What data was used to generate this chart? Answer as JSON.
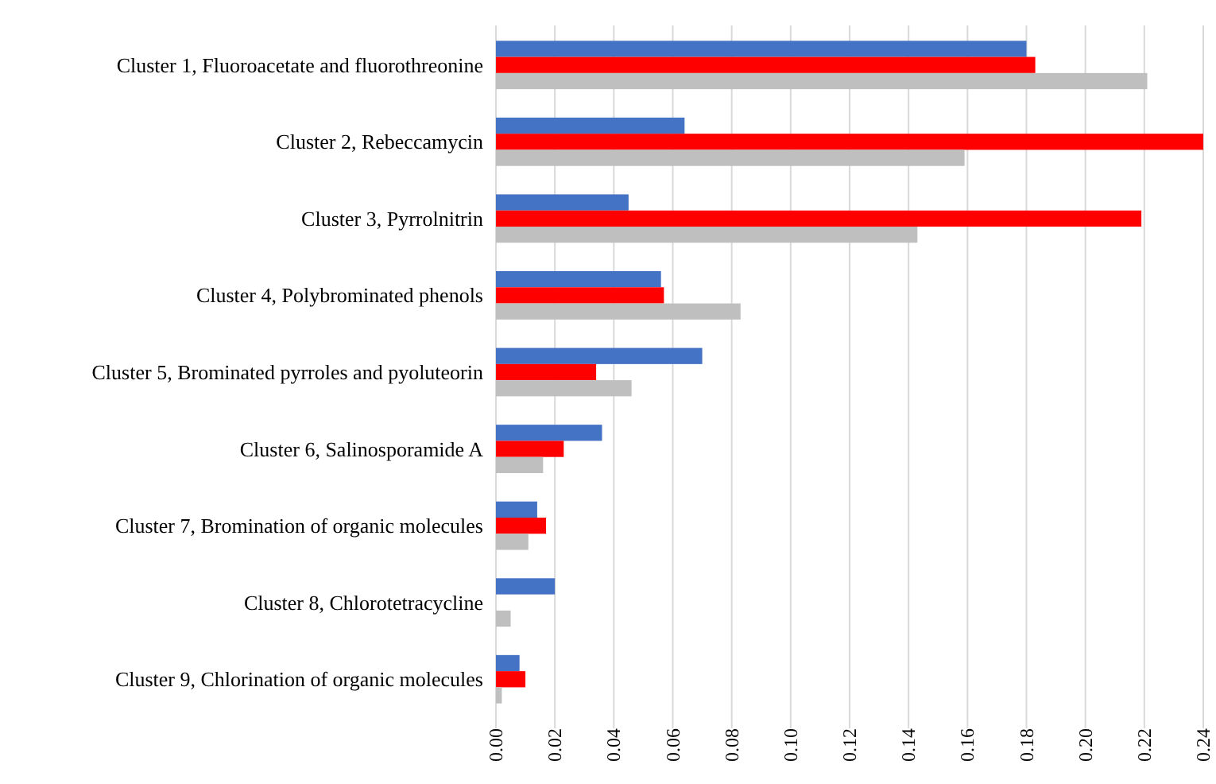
{
  "chart_data": {
    "type": "bar",
    "orientation": "horizontal",
    "categories": [
      "Cluster 1, Fluoroacetate and fluorothreonine",
      "Cluster 2, Rebeccamycin",
      "Cluster 3, Pyrrolnitrin",
      "Cluster 4, Polybrominated phenols",
      "Cluster 5, Brominated pyrroles and pyoluteorin",
      "Cluster 6, Salinosporamide A",
      "Cluster 7, Bromination of organic molecules",
      "Cluster 8, Chlorotetracycline",
      "Cluster 9, Chlorination of organic molecules"
    ],
    "series": [
      {
        "color": "#4472c4",
        "values": [
          0.18,
          0.064,
          0.045,
          0.056,
          0.07,
          0.036,
          0.014,
          0.02,
          0.008
        ]
      },
      {
        "color": "#ff0000",
        "values": [
          0.183,
          0.24,
          0.219,
          0.057,
          0.034,
          0.023,
          0.017,
          null,
          0.01
        ]
      },
      {
        "color": "#bfbfbf",
        "values": [
          0.221,
          0.159,
          0.143,
          0.083,
          0.046,
          0.016,
          0.011,
          0.005,
          0.002
        ]
      }
    ],
    "xlim": [
      0,
      0.24
    ],
    "xticks": [
      {
        "value": 0,
        "label": "0.00"
      },
      {
        "value": 0.02,
        "label": "0.02"
      },
      {
        "value": 0.04,
        "label": "0.04"
      },
      {
        "value": 0.06,
        "label": "0.06"
      },
      {
        "value": 0.08,
        "label": "0.08"
      },
      {
        "value": 0.1,
        "label": "0.10"
      },
      {
        "value": 0.12,
        "label": "0.12"
      },
      {
        "value": 0.14,
        "label": "0.14"
      },
      {
        "value": 0.16,
        "label": "0.16"
      },
      {
        "value": 0.18,
        "label": "0.18"
      },
      {
        "value": 0.2,
        "label": "0.20"
      },
      {
        "value": 0.22,
        "label": "0.22"
      },
      {
        "value": 0.24,
        "label": "0.24"
      }
    ],
    "grid": "x"
  }
}
